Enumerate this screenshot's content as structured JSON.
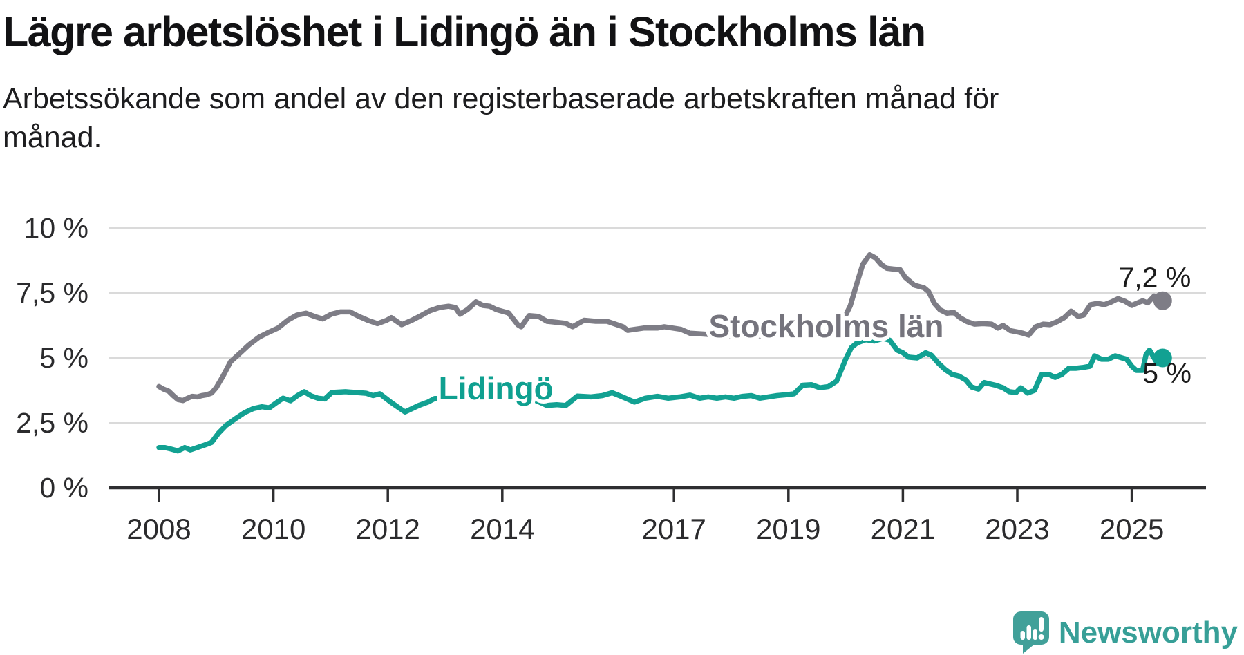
{
  "header": {
    "title": "Lägre arbetslöshet i Lidingö än i Stockholms län",
    "subtitle": "Arbetssökande som andel av den registerbaserade arbetskraften månad för månad."
  },
  "chart_data": {
    "type": "line",
    "title": "Lägre arbetslöshet i Lidingö än i Stockholms län",
    "subtitle": "Arbetssökande som andel av den registerbaserade arbetskraften månad för månad.",
    "grid": true,
    "legend_position": "inline-labels-on-lines",
    "xlim": [
      2007.1,
      2026.3
    ],
    "ylim": [
      0,
      10.6
    ],
    "colors": {
      "grid": "#dadada",
      "axis": "#2f2f31",
      "tick_text": "#2b2b2d",
      "value_label_text": "#1b1b1b",
      "background": "#ffffff"
    },
    "y_ticks": [
      {
        "value": 0,
        "label": "0 %"
      },
      {
        "value": 2.5,
        "label": "2,5 %"
      },
      {
        "value": 5,
        "label": "5 %"
      },
      {
        "value": 7.5,
        "label": "7,5 %"
      },
      {
        "value": 10,
        "label": "10 %"
      }
    ],
    "x_ticks": [
      {
        "year": 2008,
        "label": "2008"
      },
      {
        "year": 2010,
        "label": "2010"
      },
      {
        "year": 2012,
        "label": "2012"
      },
      {
        "year": 2014,
        "label": "2014"
      },
      {
        "year": 2017,
        "label": "2017"
      },
      {
        "year": 2019,
        "label": "2019"
      },
      {
        "year": 2021,
        "label": "2021"
      },
      {
        "year": 2023,
        "label": "2023"
      },
      {
        "year": 2025,
        "label": "2025"
      }
    ],
    "series": [
      {
        "id": "stockholms-lan",
        "name": "Stockholms län",
        "color": "#7e7d86",
        "label_color": "#75747d",
        "inline_label": {
          "text": "Stockholms län",
          "year": 2019.66,
          "value": 5.8
        },
        "end_label": "7,2 %",
        "end_label_side": "above",
        "end_value": 7.2,
        "points": [
          [
            2008.0,
            3.9
          ],
          [
            2008.08,
            3.8
          ],
          [
            2008.17,
            3.72
          ],
          [
            2008.25,
            3.55
          ],
          [
            2008.33,
            3.4
          ],
          [
            2008.42,
            3.36
          ],
          [
            2008.5,
            3.45
          ],
          [
            2008.58,
            3.52
          ],
          [
            2008.67,
            3.5
          ],
          [
            2008.75,
            3.55
          ],
          [
            2008.83,
            3.58
          ],
          [
            2008.92,
            3.65
          ],
          [
            2009.0,
            3.85
          ],
          [
            2009.12,
            4.3
          ],
          [
            2009.25,
            4.85
          ],
          [
            2009.4,
            5.15
          ],
          [
            2009.57,
            5.5
          ],
          [
            2009.75,
            5.8
          ],
          [
            2009.93,
            6.0
          ],
          [
            2010.08,
            6.15
          ],
          [
            2010.25,
            6.45
          ],
          [
            2010.41,
            6.65
          ],
          [
            2010.57,
            6.72
          ],
          [
            2010.73,
            6.59
          ],
          [
            2010.86,
            6.5
          ],
          [
            2011.01,
            6.68
          ],
          [
            2011.17,
            6.77
          ],
          [
            2011.34,
            6.77
          ],
          [
            2011.49,
            6.6
          ],
          [
            2011.65,
            6.45
          ],
          [
            2011.82,
            6.32
          ],
          [
            2011.98,
            6.45
          ],
          [
            2012.06,
            6.55
          ],
          [
            2012.24,
            6.28
          ],
          [
            2012.42,
            6.45
          ],
          [
            2012.58,
            6.63
          ],
          [
            2012.73,
            6.81
          ],
          [
            2012.9,
            6.94
          ],
          [
            2013.06,
            6.99
          ],
          [
            2013.18,
            6.94
          ],
          [
            2013.26,
            6.68
          ],
          [
            2013.39,
            6.86
          ],
          [
            2013.54,
            7.16
          ],
          [
            2013.66,
            7.02
          ],
          [
            2013.78,
            6.99
          ],
          [
            2013.9,
            6.86
          ],
          [
            2014.11,
            6.73
          ],
          [
            2014.27,
            6.28
          ],
          [
            2014.33,
            6.2
          ],
          [
            2014.47,
            6.63
          ],
          [
            2014.63,
            6.6
          ],
          [
            2014.78,
            6.41
          ],
          [
            2014.95,
            6.37
          ],
          [
            2015.11,
            6.33
          ],
          [
            2015.23,
            6.2
          ],
          [
            2015.43,
            6.45
          ],
          [
            2015.63,
            6.41
          ],
          [
            2015.83,
            6.41
          ],
          [
            2016.11,
            6.2
          ],
          [
            2016.19,
            6.06
          ],
          [
            2016.47,
            6.15
          ],
          [
            2016.71,
            6.15
          ],
          [
            2016.83,
            6.2
          ],
          [
            2017.12,
            6.1
          ],
          [
            2017.28,
            5.95
          ],
          [
            2017.5,
            5.92
          ],
          [
            2017.75,
            5.88
          ],
          [
            2018.0,
            5.85
          ],
          [
            2018.25,
            5.9
          ],
          [
            2018.5,
            5.85
          ],
          [
            2018.75,
            5.9
          ],
          [
            2019.0,
            5.95
          ],
          [
            2019.25,
            6.0
          ],
          [
            2019.5,
            6.05
          ],
          [
            2019.75,
            6.15
          ],
          [
            2019.92,
            6.3
          ],
          [
            2020.08,
            7.0
          ],
          [
            2020.2,
            7.9
          ],
          [
            2020.3,
            8.6
          ],
          [
            2020.42,
            8.97
          ],
          [
            2020.52,
            8.85
          ],
          [
            2020.62,
            8.6
          ],
          [
            2020.72,
            8.45
          ],
          [
            2020.83,
            8.42
          ],
          [
            2020.95,
            8.4
          ],
          [
            2021.04,
            8.1
          ],
          [
            2021.2,
            7.8
          ],
          [
            2021.37,
            7.7
          ],
          [
            2021.45,
            7.55
          ],
          [
            2021.55,
            7.1
          ],
          [
            2021.65,
            6.85
          ],
          [
            2021.77,
            6.72
          ],
          [
            2021.89,
            6.75
          ],
          [
            2022.0,
            6.55
          ],
          [
            2022.12,
            6.4
          ],
          [
            2022.25,
            6.3
          ],
          [
            2022.4,
            6.32
          ],
          [
            2022.55,
            6.3
          ],
          [
            2022.66,
            6.15
          ],
          [
            2022.75,
            6.25
          ],
          [
            2022.88,
            6.05
          ],
          [
            2023.0,
            6.0
          ],
          [
            2023.1,
            5.95
          ],
          [
            2023.2,
            5.88
          ],
          [
            2023.32,
            6.2
          ],
          [
            2023.45,
            6.3
          ],
          [
            2023.57,
            6.28
          ],
          [
            2023.7,
            6.4
          ],
          [
            2023.82,
            6.55
          ],
          [
            2023.94,
            6.8
          ],
          [
            2024.06,
            6.6
          ],
          [
            2024.16,
            6.65
          ],
          [
            2024.28,
            7.05
          ],
          [
            2024.4,
            7.1
          ],
          [
            2024.52,
            7.05
          ],
          [
            2024.64,
            7.15
          ],
          [
            2024.76,
            7.28
          ],
          [
            2024.88,
            7.18
          ],
          [
            2025.0,
            7.02
          ],
          [
            2025.19,
            7.2
          ],
          [
            2025.28,
            7.12
          ],
          [
            2025.39,
            7.38
          ],
          [
            2025.54,
            7.2
          ]
        ]
      },
      {
        "id": "lidingo",
        "name": "Lidingö",
        "color": "#12a192",
        "label_color": "#0fa090",
        "inline_label": {
          "text": "Lidingö",
          "year": 2013.89,
          "value": 3.4
        },
        "end_label": "5 %",
        "end_label_side": "below",
        "end_value": 5.0,
        "points": [
          [
            2008.0,
            1.55
          ],
          [
            2008.1,
            1.55
          ],
          [
            2008.2,
            1.5
          ],
          [
            2008.33,
            1.42
          ],
          [
            2008.45,
            1.55
          ],
          [
            2008.55,
            1.46
          ],
          [
            2008.67,
            1.55
          ],
          [
            2008.8,
            1.65
          ],
          [
            2008.92,
            1.75
          ],
          [
            2009.04,
            2.1
          ],
          [
            2009.17,
            2.4
          ],
          [
            2009.33,
            2.65
          ],
          [
            2009.5,
            2.9
          ],
          [
            2009.65,
            3.05
          ],
          [
            2009.8,
            3.12
          ],
          [
            2009.93,
            3.08
          ],
          [
            2010.05,
            3.27
          ],
          [
            2010.17,
            3.45
          ],
          [
            2010.3,
            3.35
          ],
          [
            2010.42,
            3.55
          ],
          [
            2010.54,
            3.7
          ],
          [
            2010.66,
            3.54
          ],
          [
            2010.78,
            3.45
          ],
          [
            2010.9,
            3.42
          ],
          [
            2011.02,
            3.67
          ],
          [
            2011.26,
            3.7
          ],
          [
            2011.5,
            3.66
          ],
          [
            2011.62,
            3.64
          ],
          [
            2011.74,
            3.55
          ],
          [
            2011.86,
            3.62
          ],
          [
            2012.05,
            3.3
          ],
          [
            2012.18,
            3.1
          ],
          [
            2012.3,
            2.92
          ],
          [
            2012.54,
            3.17
          ],
          [
            2012.7,
            3.3
          ],
          [
            2012.82,
            3.44
          ],
          [
            2013.0,
            3.44
          ],
          [
            2013.25,
            3.46
          ],
          [
            2013.5,
            3.44
          ],
          [
            2013.75,
            3.46
          ],
          [
            2014.0,
            3.44
          ],
          [
            2014.25,
            3.42
          ],
          [
            2014.5,
            3.44
          ],
          [
            2014.65,
            3.3
          ],
          [
            2014.78,
            3.17
          ],
          [
            2014.95,
            3.2
          ],
          [
            2015.11,
            3.17
          ],
          [
            2015.31,
            3.53
          ],
          [
            2015.55,
            3.5
          ],
          [
            2015.75,
            3.55
          ],
          [
            2015.92,
            3.66
          ],
          [
            2016.1,
            3.5
          ],
          [
            2016.31,
            3.3
          ],
          [
            2016.5,
            3.45
          ],
          [
            2016.71,
            3.52
          ],
          [
            2016.9,
            3.45
          ],
          [
            2017.1,
            3.5
          ],
          [
            2017.28,
            3.57
          ],
          [
            2017.45,
            3.45
          ],
          [
            2017.6,
            3.5
          ],
          [
            2017.75,
            3.45
          ],
          [
            2017.9,
            3.5
          ],
          [
            2018.05,
            3.45
          ],
          [
            2018.2,
            3.52
          ],
          [
            2018.35,
            3.55
          ],
          [
            2018.5,
            3.45
          ],
          [
            2018.65,
            3.5
          ],
          [
            2018.8,
            3.55
          ],
          [
            2018.95,
            3.58
          ],
          [
            2019.1,
            3.62
          ],
          [
            2019.25,
            3.95
          ],
          [
            2019.4,
            3.97
          ],
          [
            2019.55,
            3.85
          ],
          [
            2019.7,
            3.9
          ],
          [
            2019.84,
            4.1
          ],
          [
            2020.0,
            4.95
          ],
          [
            2020.1,
            5.4
          ],
          [
            2020.2,
            5.58
          ],
          [
            2020.35,
            5.7
          ],
          [
            2020.5,
            5.65
          ],
          [
            2020.65,
            5.75
          ],
          [
            2020.77,
            5.68
          ],
          [
            2020.9,
            5.3
          ],
          [
            2021.0,
            5.2
          ],
          [
            2021.1,
            5.03
          ],
          [
            2021.25,
            5.0
          ],
          [
            2021.4,
            5.2
          ],
          [
            2021.5,
            5.1
          ],
          [
            2021.62,
            4.8
          ],
          [
            2021.74,
            4.55
          ],
          [
            2021.86,
            4.37
          ],
          [
            2021.98,
            4.3
          ],
          [
            2022.1,
            4.15
          ],
          [
            2022.2,
            3.88
          ],
          [
            2022.32,
            3.8
          ],
          [
            2022.42,
            4.05
          ],
          [
            2022.52,
            4.0
          ],
          [
            2022.62,
            3.95
          ],
          [
            2022.75,
            3.85
          ],
          [
            2022.86,
            3.7
          ],
          [
            2022.98,
            3.67
          ],
          [
            2023.06,
            3.85
          ],
          [
            2023.18,
            3.65
          ],
          [
            2023.3,
            3.75
          ],
          [
            2023.42,
            4.35
          ],
          [
            2023.55,
            4.37
          ],
          [
            2023.66,
            4.25
          ],
          [
            2023.78,
            4.37
          ],
          [
            2023.9,
            4.6
          ],
          [
            2024.02,
            4.6
          ],
          [
            2024.14,
            4.63
          ],
          [
            2024.27,
            4.68
          ],
          [
            2024.35,
            5.08
          ],
          [
            2024.47,
            4.95
          ],
          [
            2024.59,
            4.95
          ],
          [
            2024.71,
            5.08
          ],
          [
            2024.83,
            5.0
          ],
          [
            2024.91,
            4.95
          ],
          [
            2025.0,
            4.68
          ],
          [
            2025.08,
            4.52
          ],
          [
            2025.19,
            4.52
          ],
          [
            2025.25,
            5.13
          ],
          [
            2025.31,
            5.3
          ],
          [
            2025.45,
            4.78
          ],
          [
            2025.54,
            5.0
          ]
        ]
      }
    ]
  },
  "footer": {
    "brand": "Newsworthy",
    "logo_icon": "speech-bubble-bar-chart-icon",
    "logo_color": "#41a099"
  }
}
